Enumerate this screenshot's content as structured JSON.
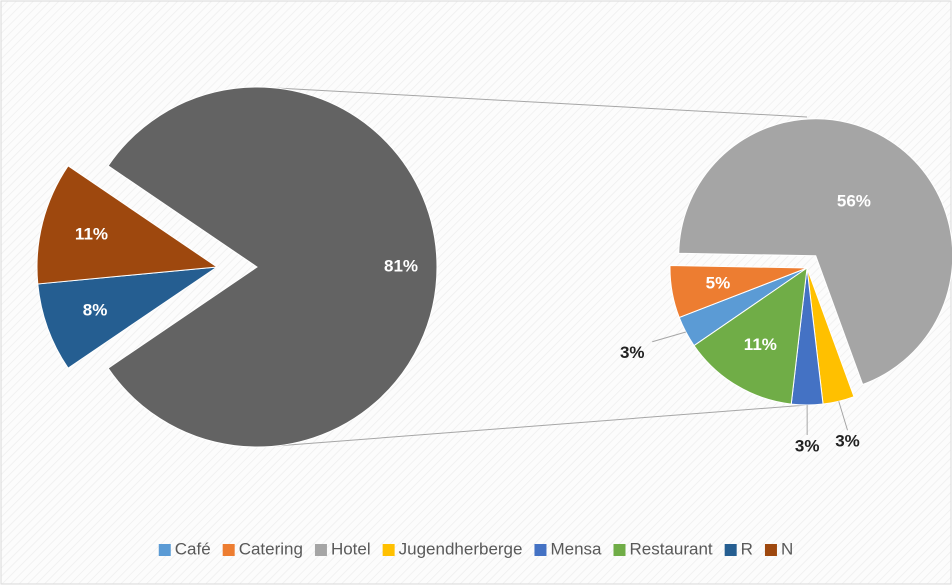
{
  "chart_data": {
    "type": "pie_of_pie",
    "categories": [
      "Café",
      "Catering",
      "Hotel",
      "Jugendherberge",
      "Mensa",
      "Restaurant",
      "R",
      "N"
    ],
    "values": [
      3,
      5,
      56,
      3,
      3,
      11,
      8,
      11
    ],
    "value_labels": [
      "3%",
      "5%",
      "56%",
      "3%",
      "3%",
      "11%",
      "8%",
      "11%"
    ],
    "colors": [
      "#5b9bd5",
      "#ed7d31",
      "#a5a5a5",
      "#ffc000",
      "#4472c4",
      "#70ad47",
      "#255e91",
      "#9e480e"
    ],
    "secondary_count": 6,
    "other_value": 81,
    "other_value_label": "81%",
    "other_color": "#636363",
    "legend": "bottom"
  }
}
